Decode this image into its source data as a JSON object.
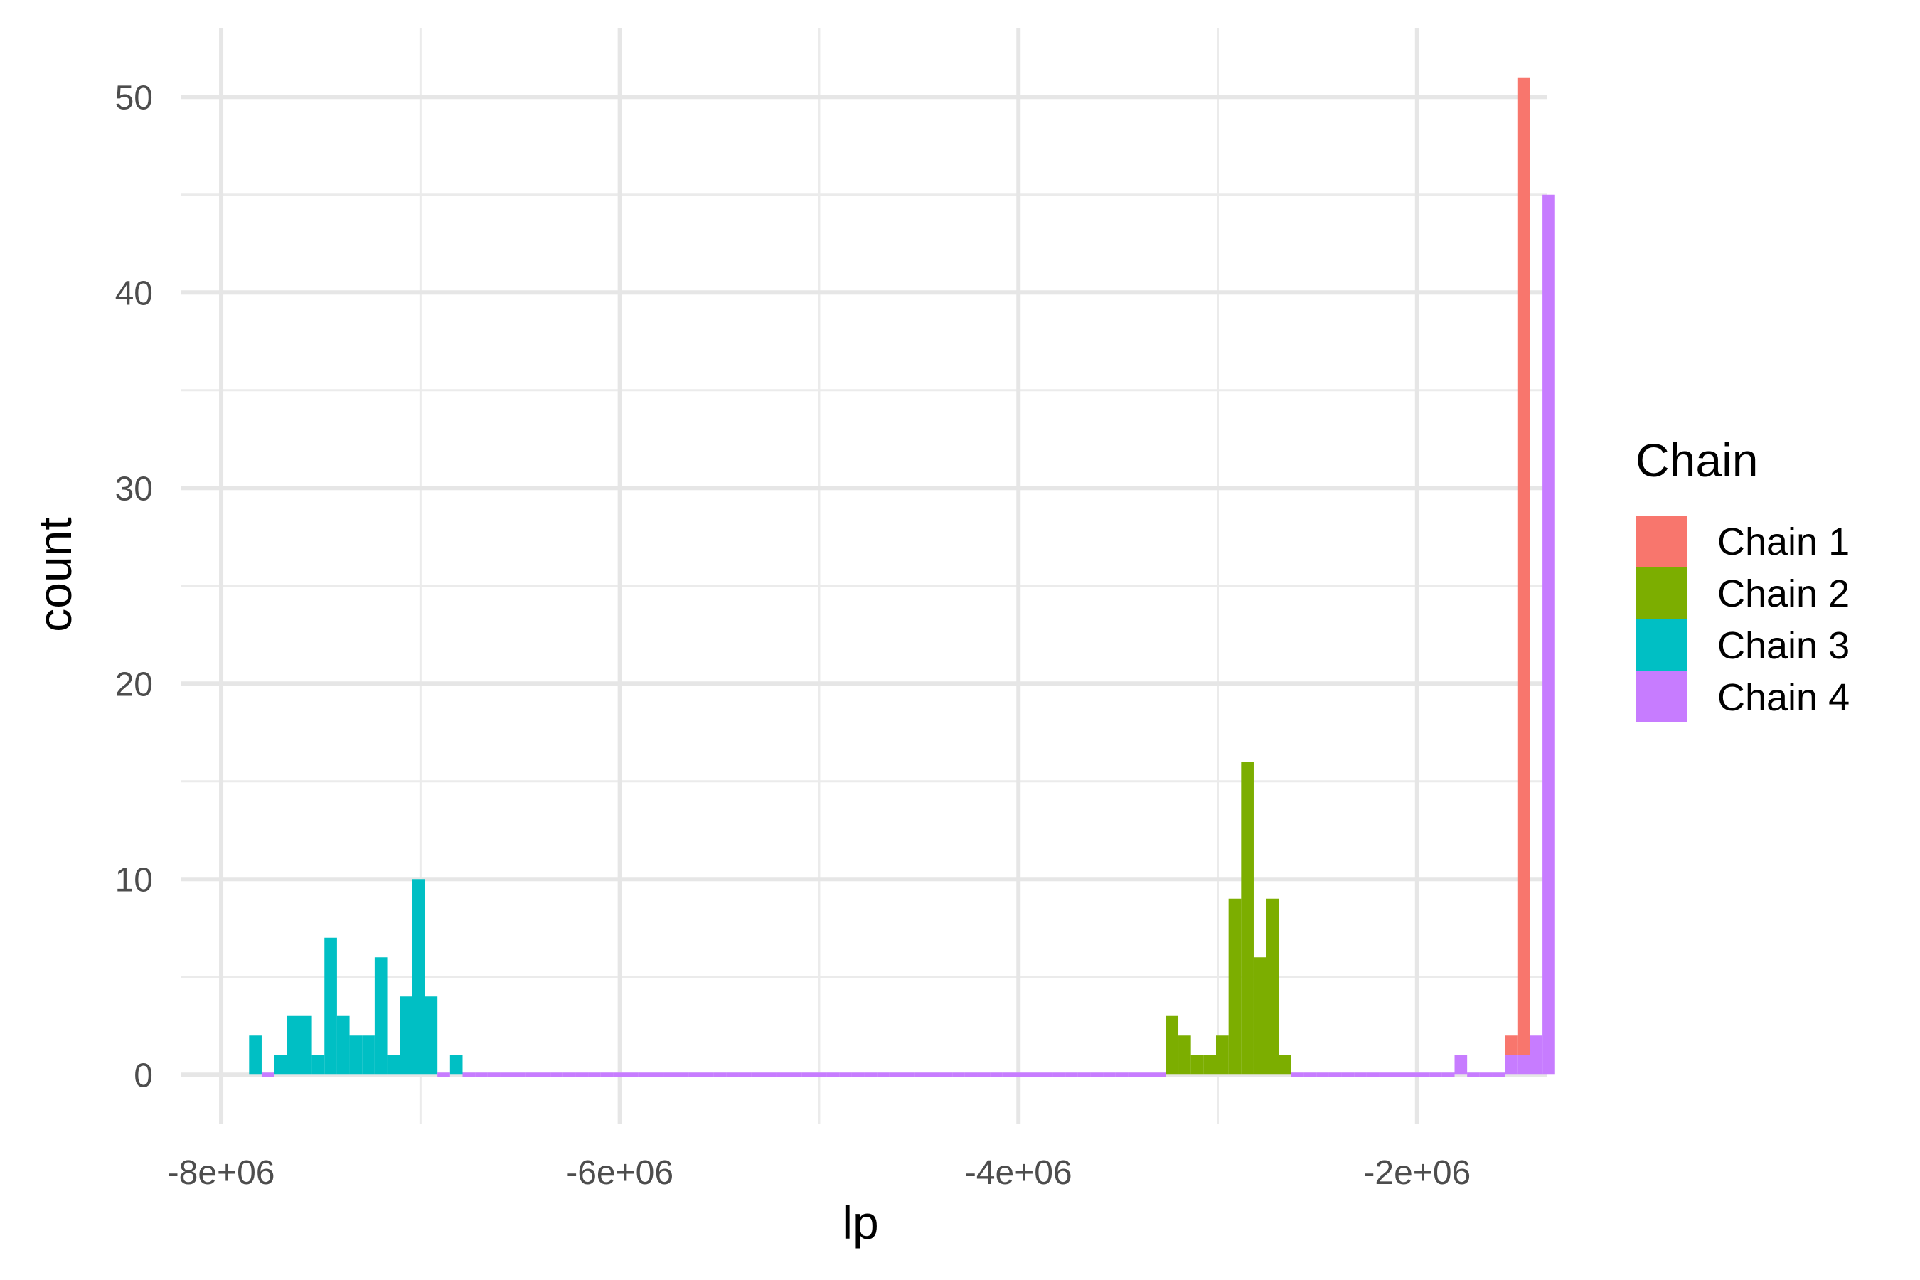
{
  "chart_data": {
    "type": "bar",
    "xlabel": "lp",
    "ylabel": "count",
    "xlim": [
      -8200000,
      -1350000
    ],
    "ylim": [
      -2.5,
      53.5
    ],
    "x_ticks": [
      {
        "value": -8000000,
        "label": "-8e+06"
      },
      {
        "value": -6000000,
        "label": "-6e+06"
      },
      {
        "value": -4000000,
        "label": "-4e+06"
      },
      {
        "value": -2000000,
        "label": "-2e+06"
      }
    ],
    "x_minor_ticks": [
      -7000000,
      -5000000,
      -3000000
    ],
    "y_ticks": [
      {
        "value": 0,
        "label": "0"
      },
      {
        "value": 10,
        "label": "10"
      },
      {
        "value": 20,
        "label": "20"
      },
      {
        "value": 30,
        "label": "30"
      },
      {
        "value": 40,
        "label": "40"
      },
      {
        "value": 50,
        "label": "50"
      }
    ],
    "y_minor_ticks": [
      5,
      15,
      25,
      35,
      45
    ],
    "grid": true,
    "bin_width": 63000,
    "bin_start": -7860000,
    "legend": {
      "title": "Chain",
      "position": "right"
    },
    "series": [
      {
        "name": "Chain 1",
        "color": "#F8766D",
        "bins": [
          {
            "index": 100,
            "count": 1
          },
          {
            "index": 101,
            "count": 50
          },
          {
            "index": 102,
            "count": 0
          }
        ]
      },
      {
        "name": "Chain 2",
        "color": "#7CAE00",
        "bins": [
          {
            "index": 73,
            "count": 3
          },
          {
            "index": 74,
            "count": 2
          },
          {
            "index": 75,
            "count": 1
          },
          {
            "index": 76,
            "count": 1
          },
          {
            "index": 77,
            "count": 2
          },
          {
            "index": 78,
            "count": 9
          },
          {
            "index": 79,
            "count": 16
          },
          {
            "index": 80,
            "count": 6
          },
          {
            "index": 81,
            "count": 9
          },
          {
            "index": 82,
            "count": 1
          }
        ]
      },
      {
        "name": "Chain 3",
        "color": "#00BFC4",
        "bins": [
          {
            "index": 0,
            "count": 2
          },
          {
            "index": 1,
            "count": 0
          },
          {
            "index": 2,
            "count": 1
          },
          {
            "index": 3,
            "count": 3
          },
          {
            "index": 4,
            "count": 3
          },
          {
            "index": 5,
            "count": 1
          },
          {
            "index": 6,
            "count": 7
          },
          {
            "index": 7,
            "count": 3
          },
          {
            "index": 8,
            "count": 2
          },
          {
            "index": 9,
            "count": 2
          },
          {
            "index": 10,
            "count": 6
          },
          {
            "index": 11,
            "count": 1
          },
          {
            "index": 12,
            "count": 4
          },
          {
            "index": 13,
            "count": 10
          },
          {
            "index": 14,
            "count": 4
          },
          {
            "index": 15,
            "count": 0
          },
          {
            "index": 16,
            "count": 1
          }
        ]
      },
      {
        "name": "Chain 4",
        "color": "#C77CFF",
        "bins": [
          {
            "index": 96,
            "count": 1
          },
          {
            "index": 100,
            "count": 1
          },
          {
            "index": 101,
            "count": 1
          },
          {
            "index": 102,
            "count": 2
          },
          {
            "index": 103,
            "count": 45
          }
        ]
      }
    ]
  }
}
